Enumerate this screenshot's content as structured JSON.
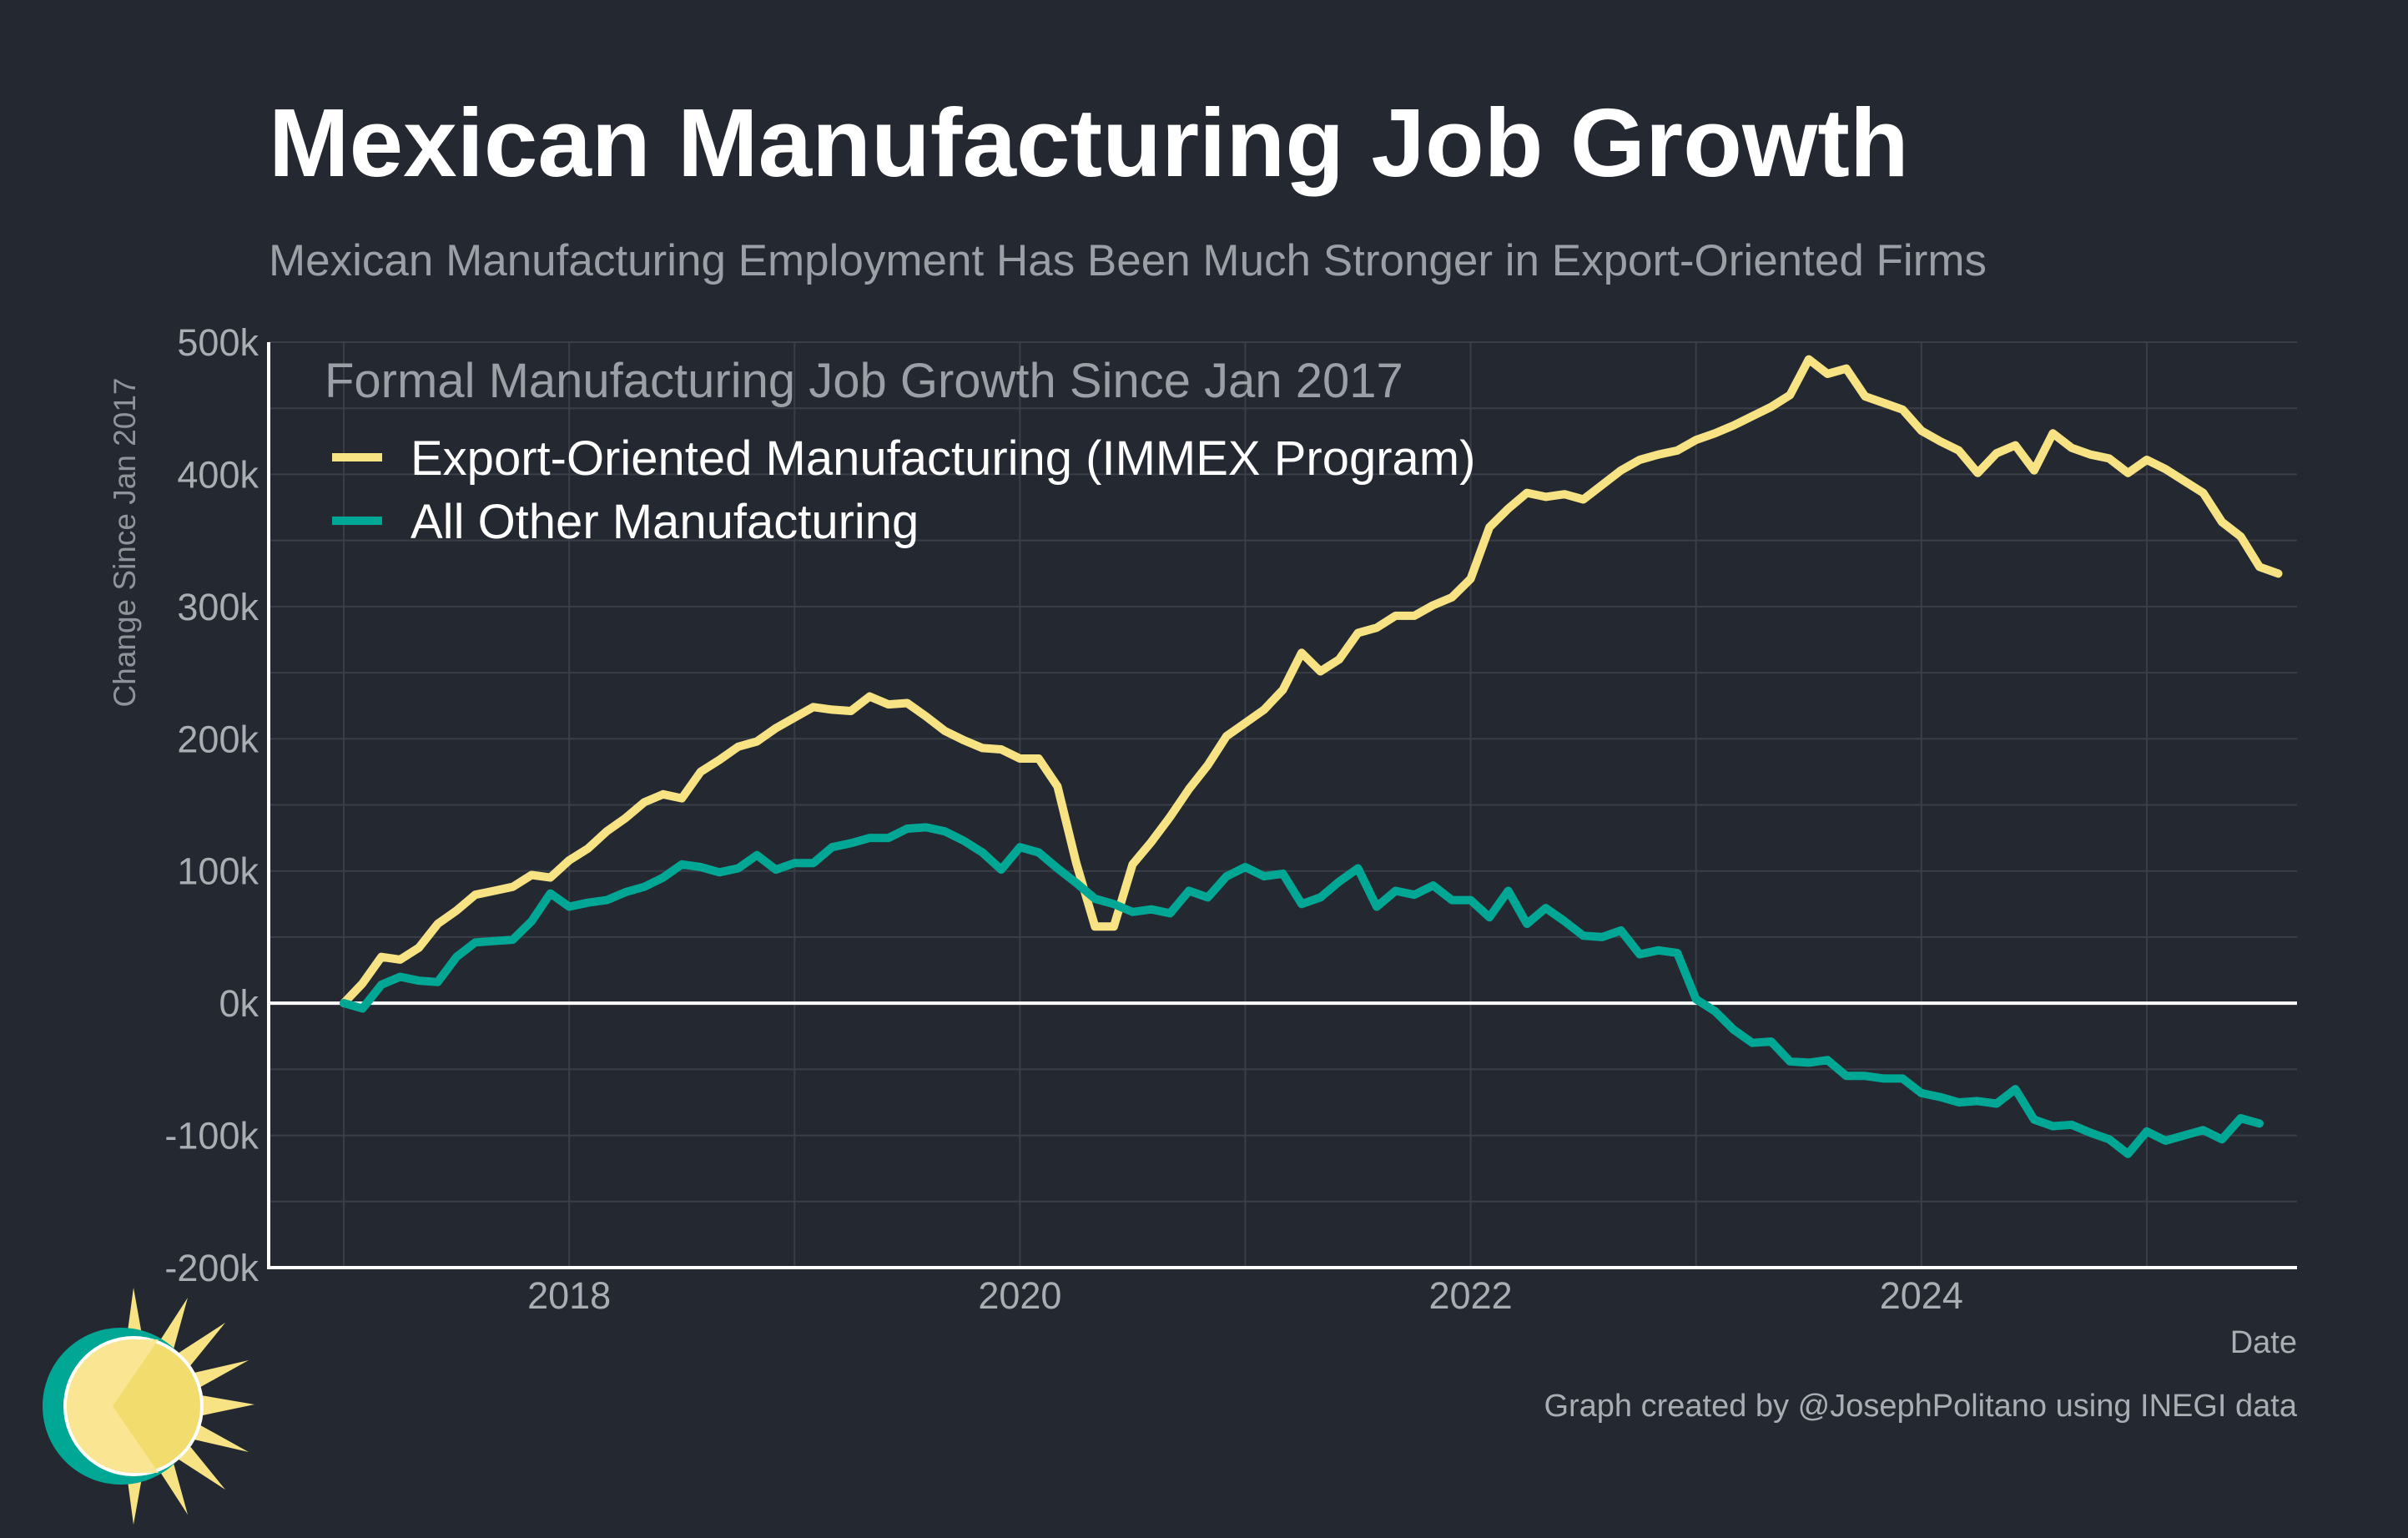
{
  "header": {
    "title": "Mexican Manufacturing Job Growth",
    "subtitle": "Mexican Manufacturing Employment Has Been Much Stronger in Export-Oriented Firms"
  },
  "caption": "Graph created by @JosephPolitano using INEGI data",
  "colors": {
    "background": "#242830",
    "grid": "#3a3e46",
    "axis": "#ffffff",
    "export_series": "#f7e384",
    "other_series": "#00a795",
    "logo_sun": "#f7e384",
    "logo_ring": "#00a795"
  },
  "chart_data": {
    "type": "line",
    "legend_title": "Formal Manufacturing Job Growth Since Jan 2017",
    "legend_position": "top-left",
    "xlabel": "Date",
    "ylabel": "Change Since Jan 2017",
    "xlim": [
      "2016-09",
      "2025-09"
    ],
    "ylim": [
      -200000,
      500000
    ],
    "x_ticks": [
      "2018",
      "2020",
      "2022",
      "2024"
    ],
    "y_ticks": [
      {
        "value": -200000,
        "label": "-200k"
      },
      {
        "value": -100000,
        "label": "-100k"
      },
      {
        "value": 0,
        "label": "0k"
      },
      {
        "value": 100000,
        "label": "100k"
      },
      {
        "value": 200000,
        "label": "200k"
      },
      {
        "value": 300000,
        "label": "300k"
      },
      {
        "value": 400000,
        "label": "400k"
      },
      {
        "value": 500000,
        "label": "500k"
      }
    ],
    "grid": true,
    "zero_line": true,
    "series": [
      {
        "name": "Export-Oriented Manufacturing (IMMEX Program)",
        "color": "#f7e384",
        "points": [
          [
            "2017-01",
            0
          ],
          [
            "2017-02",
            15000
          ],
          [
            "2017-03",
            35000
          ],
          [
            "2017-04",
            33000
          ],
          [
            "2017-05",
            42000
          ],
          [
            "2017-06",
            60000
          ],
          [
            "2017-07",
            70000
          ],
          [
            "2017-08",
            82000
          ],
          [
            "2017-09",
            85000
          ],
          [
            "2017-10",
            88000
          ],
          [
            "2017-11",
            97000
          ],
          [
            "2017-12",
            95000
          ],
          [
            "2018-01",
            108000
          ],
          [
            "2018-02",
            117000
          ],
          [
            "2018-03",
            130000
          ],
          [
            "2018-04",
            140000
          ],
          [
            "2018-05",
            152000
          ],
          [
            "2018-06",
            158000
          ],
          [
            "2018-07",
            155000
          ],
          [
            "2018-08",
            175000
          ],
          [
            "2018-09",
            184000
          ],
          [
            "2018-10",
            194000
          ],
          [
            "2018-11",
            198000
          ],
          [
            "2018-12",
            208000
          ],
          [
            "2019-01",
            216000
          ],
          [
            "2019-02",
            224000
          ],
          [
            "2019-03",
            222000
          ],
          [
            "2019-04",
            221000
          ],
          [
            "2019-05",
            232000
          ],
          [
            "2019-06",
            226000
          ],
          [
            "2019-07",
            227000
          ],
          [
            "2019-08",
            217000
          ],
          [
            "2019-09",
            206000
          ],
          [
            "2019-10",
            199000
          ],
          [
            "2019-11",
            193000
          ],
          [
            "2019-12",
            192000
          ],
          [
            "2020-01",
            185000
          ],
          [
            "2020-02",
            185000
          ],
          [
            "2020-03",
            164000
          ],
          [
            "2020-04",
            106000
          ],
          [
            "2020-05",
            58000
          ],
          [
            "2020-06",
            58000
          ],
          [
            "2020-07",
            105000
          ],
          [
            "2020-08",
            122000
          ],
          [
            "2020-09",
            141000
          ],
          [
            "2020-10",
            162000
          ],
          [
            "2020-11",
            180000
          ],
          [
            "2020-12",
            202000
          ],
          [
            "2021-01",
            212000
          ],
          [
            "2021-02",
            222000
          ],
          [
            "2021-03",
            237000
          ],
          [
            "2021-04",
            265000
          ],
          [
            "2021-05",
            251000
          ],
          [
            "2021-06",
            260000
          ],
          [
            "2021-07",
            280000
          ],
          [
            "2021-08",
            284000
          ],
          [
            "2021-09",
            293000
          ],
          [
            "2021-10",
            293000
          ],
          [
            "2021-11",
            301000
          ],
          [
            "2021-12",
            307000
          ],
          [
            "2022-01",
            321000
          ],
          [
            "2022-02",
            360000
          ],
          [
            "2022-03",
            374000
          ],
          [
            "2022-04",
            386000
          ],
          [
            "2022-05",
            383000
          ],
          [
            "2022-06",
            385000
          ],
          [
            "2022-07",
            381000
          ],
          [
            "2022-08",
            392000
          ],
          [
            "2022-09",
            403000
          ],
          [
            "2022-10",
            411000
          ],
          [
            "2022-11",
            415000
          ],
          [
            "2022-12",
            418000
          ],
          [
            "2023-01",
            426000
          ],
          [
            "2023-02",
            431000
          ],
          [
            "2023-03",
            437000
          ],
          [
            "2023-04",
            444000
          ],
          [
            "2023-05",
            451000
          ],
          [
            "2023-06",
            460000
          ],
          [
            "2023-07",
            487000
          ],
          [
            "2023-08",
            476000
          ],
          [
            "2023-09",
            480000
          ],
          [
            "2023-10",
            459000
          ],
          [
            "2023-11",
            454000
          ],
          [
            "2023-12",
            449000
          ],
          [
            "2024-01",
            433000
          ],
          [
            "2024-02",
            425000
          ],
          [
            "2024-03",
            418000
          ],
          [
            "2024-04",
            401000
          ],
          [
            "2024-05",
            416000
          ],
          [
            "2024-06",
            422000
          ],
          [
            "2024-07",
            403000
          ],
          [
            "2024-08",
            431000
          ],
          [
            "2024-09",
            420000
          ],
          [
            "2024-10",
            415000
          ],
          [
            "2024-11",
            412000
          ],
          [
            "2024-12",
            401000
          ],
          [
            "2025-01",
            411000
          ],
          [
            "2025-02",
            404000
          ],
          [
            "2025-03",
            395000
          ],
          [
            "2025-04",
            386000
          ],
          [
            "2025-05",
            364000
          ],
          [
            "2025-06",
            353000
          ],
          [
            "2025-07",
            330000
          ],
          [
            "2025-08",
            325000
          ]
        ]
      },
      {
        "name": "All Other Manufacturing",
        "color": "#00a795",
        "points": [
          [
            "2017-01",
            0
          ],
          [
            "2017-02",
            -4000
          ],
          [
            "2017-03",
            14000
          ],
          [
            "2017-04",
            20000
          ],
          [
            "2017-05",
            17000
          ],
          [
            "2017-06",
            16000
          ],
          [
            "2017-07",
            35000
          ],
          [
            "2017-08",
            46000
          ],
          [
            "2017-09",
            47000
          ],
          [
            "2017-10",
            48000
          ],
          [
            "2017-11",
            62000
          ],
          [
            "2017-12",
            83000
          ],
          [
            "2018-01",
            73000
          ],
          [
            "2018-02",
            76000
          ],
          [
            "2018-03",
            78000
          ],
          [
            "2018-04",
            84000
          ],
          [
            "2018-05",
            88000
          ],
          [
            "2018-06",
            95000
          ],
          [
            "2018-07",
            105000
          ],
          [
            "2018-08",
            103000
          ],
          [
            "2018-09",
            99000
          ],
          [
            "2018-10",
            102000
          ],
          [
            "2018-11",
            112000
          ],
          [
            "2018-12",
            101000
          ],
          [
            "2019-01",
            106000
          ],
          [
            "2019-02",
            106000
          ],
          [
            "2019-03",
            118000
          ],
          [
            "2019-04",
            121000
          ],
          [
            "2019-05",
            125000
          ],
          [
            "2019-06",
            125000
          ],
          [
            "2019-07",
            132000
          ],
          [
            "2019-08",
            133000
          ],
          [
            "2019-09",
            130000
          ],
          [
            "2019-10",
            123000
          ],
          [
            "2019-11",
            114000
          ],
          [
            "2019-12",
            101000
          ],
          [
            "2020-01",
            118000
          ],
          [
            "2020-02",
            114000
          ],
          [
            "2020-03",
            102000
          ],
          [
            "2020-04",
            91000
          ],
          [
            "2020-05",
            79000
          ],
          [
            "2020-06",
            75000
          ],
          [
            "2020-07",
            69000
          ],
          [
            "2020-08",
            71000
          ],
          [
            "2020-09",
            68000
          ],
          [
            "2020-10",
            85000
          ],
          [
            "2020-11",
            80000
          ],
          [
            "2020-12",
            96000
          ],
          [
            "2021-01",
            103000
          ],
          [
            "2021-02",
            96000
          ],
          [
            "2021-03",
            98000
          ],
          [
            "2021-04",
            75000
          ],
          [
            "2021-05",
            80000
          ],
          [
            "2021-06",
            92000
          ],
          [
            "2021-07",
            102000
          ],
          [
            "2021-08",
            73000
          ],
          [
            "2021-09",
            85000
          ],
          [
            "2021-10",
            82000
          ],
          [
            "2021-11",
            89000
          ],
          [
            "2021-12",
            78000
          ],
          [
            "2022-01",
            78000
          ],
          [
            "2022-02",
            65000
          ],
          [
            "2022-03",
            85000
          ],
          [
            "2022-04",
            60000
          ],
          [
            "2022-05",
            72000
          ],
          [
            "2022-06",
            62000
          ],
          [
            "2022-07",
            51000
          ],
          [
            "2022-08",
            50000
          ],
          [
            "2022-09",
            55000
          ],
          [
            "2022-10",
            37000
          ],
          [
            "2022-11",
            40000
          ],
          [
            "2022-12",
            38000
          ],
          [
            "2023-01",
            3000
          ],
          [
            "2023-02",
            -6000
          ],
          [
            "2023-03",
            -20000
          ],
          [
            "2023-04",
            -30000
          ],
          [
            "2023-05",
            -29000
          ],
          [
            "2023-06",
            -44000
          ],
          [
            "2023-07",
            -45000
          ],
          [
            "2023-08",
            -43000
          ],
          [
            "2023-09",
            -55000
          ],
          [
            "2023-10",
            -55000
          ],
          [
            "2023-11",
            -57000
          ],
          [
            "2023-12",
            -57000
          ],
          [
            "2024-01",
            -68000
          ],
          [
            "2024-02",
            -71000
          ],
          [
            "2024-03",
            -75000
          ],
          [
            "2024-04",
            -74000
          ],
          [
            "2024-05",
            -76000
          ],
          [
            "2024-06",
            -65000
          ],
          [
            "2024-07",
            -88000
          ],
          [
            "2024-08",
            -93000
          ],
          [
            "2024-09",
            -92000
          ],
          [
            "2024-10",
            -98000
          ],
          [
            "2024-11",
            -103000
          ],
          [
            "2024-12",
            -114000
          ],
          [
            "2025-01",
            -97000
          ],
          [
            "2025-02",
            -104000
          ],
          [
            "2025-03",
            -100000
          ],
          [
            "2025-04",
            -96000
          ],
          [
            "2025-05",
            -103000
          ],
          [
            "2025-06",
            -87000
          ],
          [
            "2025-07",
            -91000
          ]
        ]
      }
    ]
  }
}
